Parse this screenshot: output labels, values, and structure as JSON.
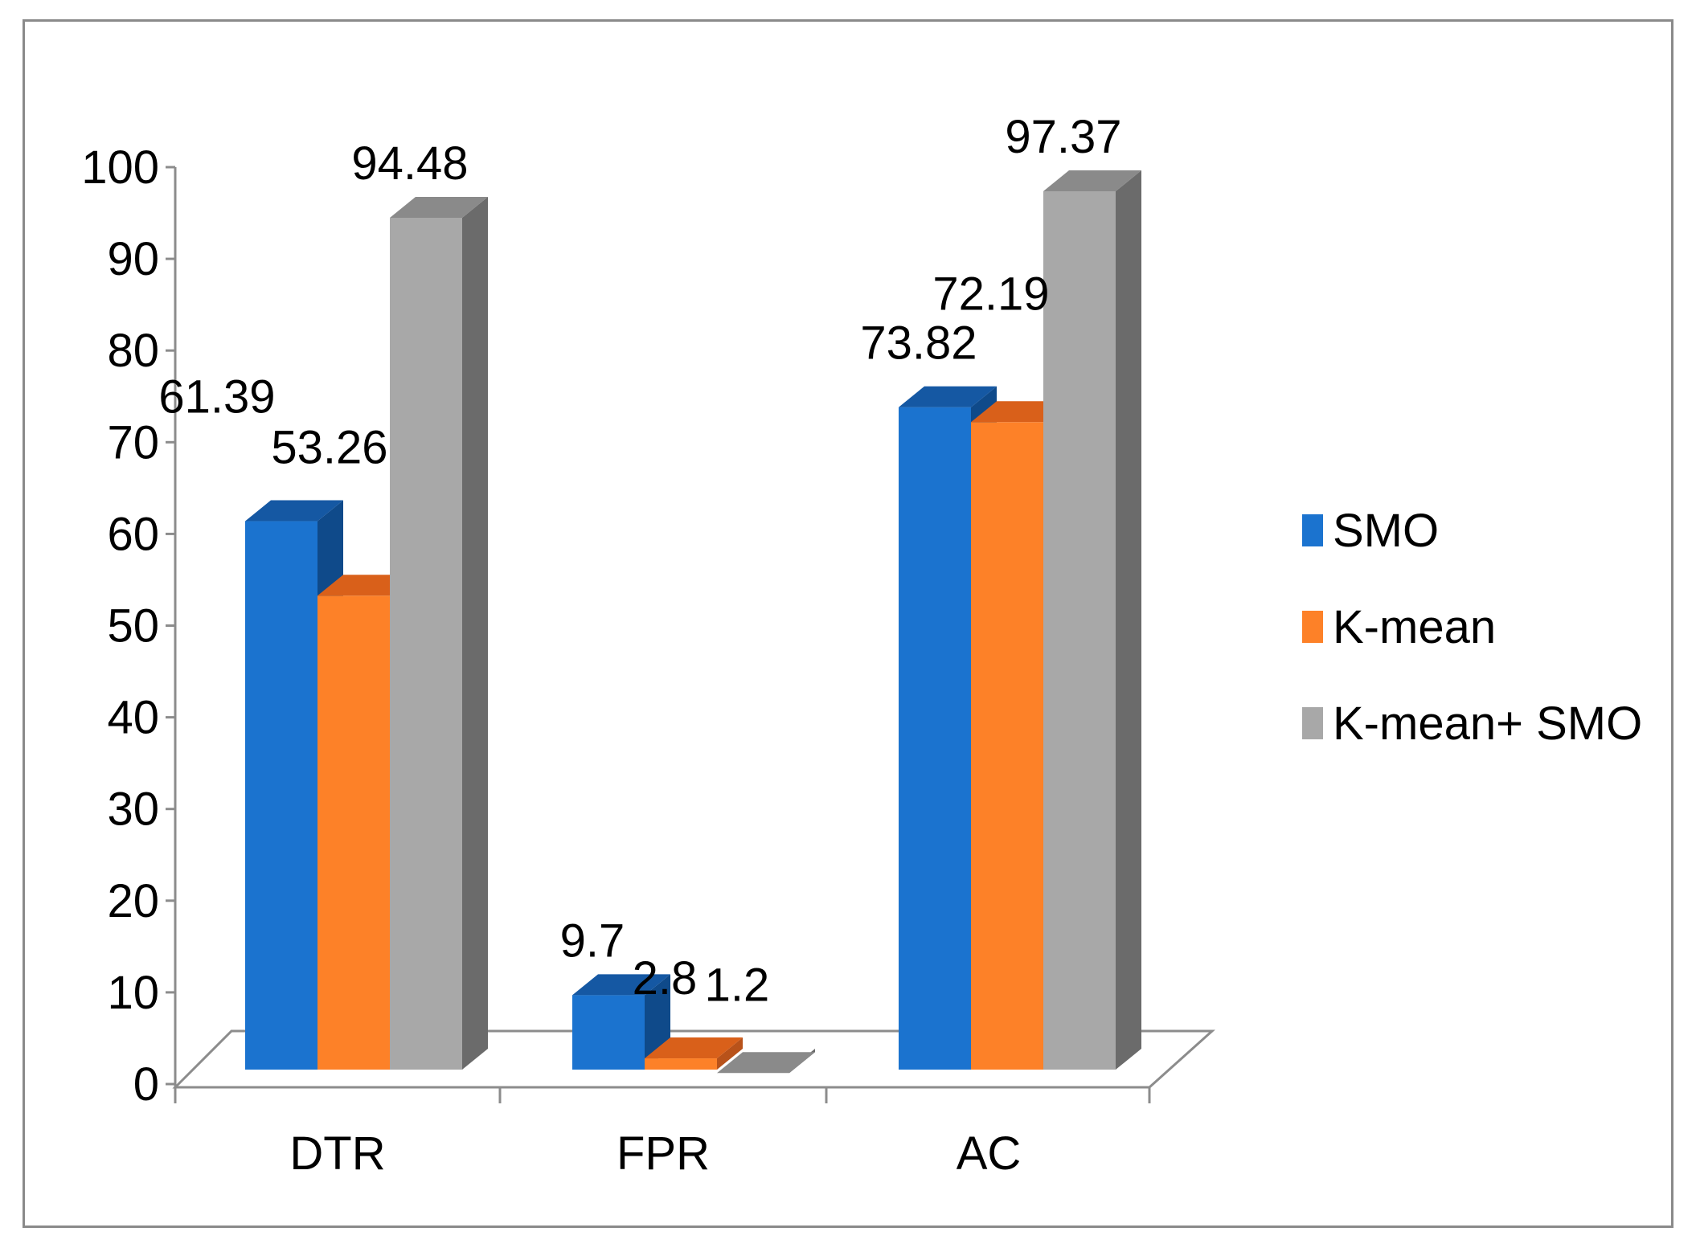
{
  "chart_data": {
    "type": "bar",
    "title": "",
    "xlabel": "",
    "ylabel": "",
    "ylim": [
      0,
      100
    ],
    "yticks": [
      0,
      10,
      20,
      30,
      40,
      50,
      60,
      70,
      80,
      90,
      100
    ],
    "categories": [
      "DTR",
      "FPR",
      "AC"
    ],
    "series": [
      {
        "name": "SMO",
        "values": [
          61.39,
          9.7,
          73.82
        ],
        "labels": [
          "61.39",
          "9.7",
          "73.82"
        ]
      },
      {
        "name": "K-mean",
        "values": [
          53.26,
          2.8,
          72.19
        ],
        "labels": [
          "53.26",
          "2.8",
          "72.19"
        ]
      },
      {
        "name": "K-mean+ SMO",
        "values": [
          94.48,
          1.2,
          97.37
        ],
        "labels": [
          "94.48",
          "1.2",
          "97.37"
        ]
      }
    ],
    "legend_position": "right",
    "grid": false,
    "style": "3d-clustered-column"
  },
  "colors": {
    "SMO": {
      "front": "#1b73cf",
      "top": "#1558a3",
      "side": "#0f4a8a"
    },
    "K-mean": {
      "front": "#fd8128",
      "top": "#d9601a",
      "side": "#b8521a"
    },
    "K-mean+ SMO": {
      "front": "#a8a8a8",
      "top": "#8a8a8a",
      "side": "#6b6b6b"
    },
    "axis": "#8c8c8c"
  }
}
